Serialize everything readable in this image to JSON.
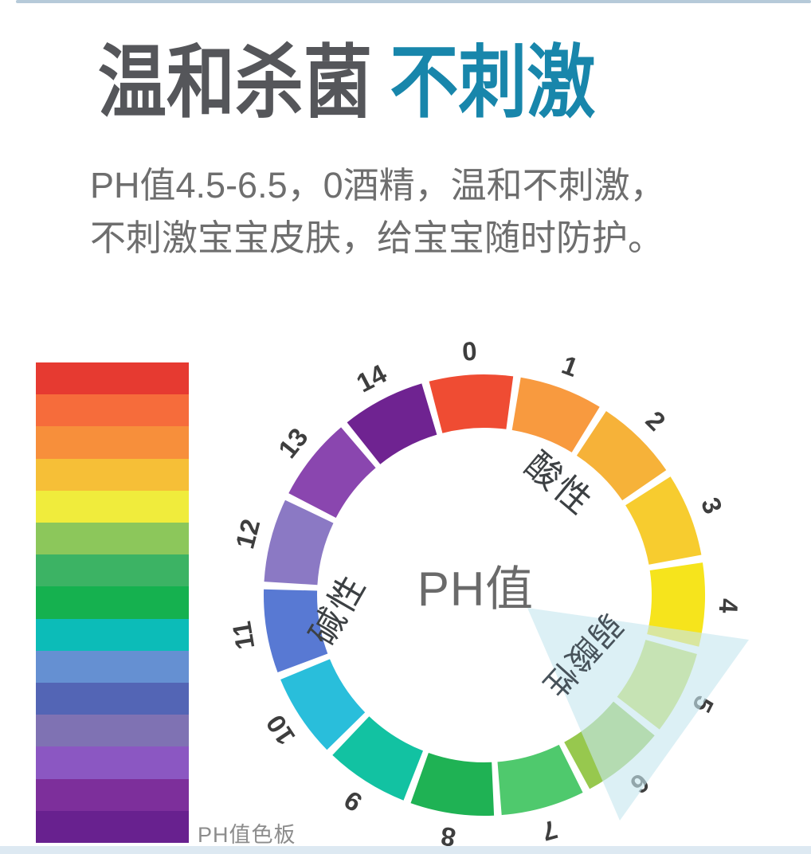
{
  "strips": {
    "top_color": "#b6cad9",
    "bottom_color": "#dde9f2"
  },
  "header": {
    "title_primary": "温和杀菌",
    "title_accent": "不刺激",
    "title_primary_color": "#55565a",
    "title_accent_color": "#1886ab",
    "subtitle_line1": "PH值4.5-6.5，0酒精，温和不刺激，",
    "subtitle_line2": "不刺激宝宝皮肤，给宝宝随时防护。"
  },
  "color_bar": {
    "caption": "PH值色板",
    "stripe_colors": [
      "#e63a31",
      "#f66c3b",
      "#f78f3b",
      "#f6bf37",
      "#f0ec3c",
      "#8cc75b",
      "#3cb364",
      "#15b14f",
      "#0cbcb8",
      "#6590d2",
      "#5365b5",
      "#7f72b3",
      "#8b57c2",
      "#7d2f9b",
      "#68218f"
    ]
  },
  "wheel": {
    "center_label": "PH值",
    "center_label_color": "#6a6a6a",
    "acidic_label": "酸性",
    "alkaline_label": "碱性",
    "weak_acidic_label": "弱酸性",
    "region_label_color": "#3c4043",
    "weak_label_color": "#47525a",
    "number_color": "#3e3e3e",
    "pointer_color": "#c7e6ef",
    "segments": [
      {
        "ph": "0",
        "color": "#ef4c33"
      },
      {
        "ph": "1",
        "color": "#f89a3f"
      },
      {
        "ph": "2",
        "color": "#f6b239"
      },
      {
        "ph": "3",
        "color": "#f7cc2f"
      },
      {
        "ph": "4",
        "color": "#f6e41c"
      },
      {
        "ph": "5",
        "color": "#c6dc55"
      },
      {
        "ph": "6",
        "color": "#97c84e"
      },
      {
        "ph": "7",
        "color": "#4fc96d"
      },
      {
        "ph": "8",
        "color": "#1fb254"
      },
      {
        "ph": "9",
        "color": "#12c2a2"
      },
      {
        "ph": "10",
        "color": "#29bedb"
      },
      {
        "ph": "11",
        "color": "#5879d3"
      },
      {
        "ph": "12",
        "color": "#8b79c4"
      },
      {
        "ph": "13",
        "color": "#8a46af"
      },
      {
        "ph": "14",
        "color": "#6f2391"
      }
    ]
  }
}
